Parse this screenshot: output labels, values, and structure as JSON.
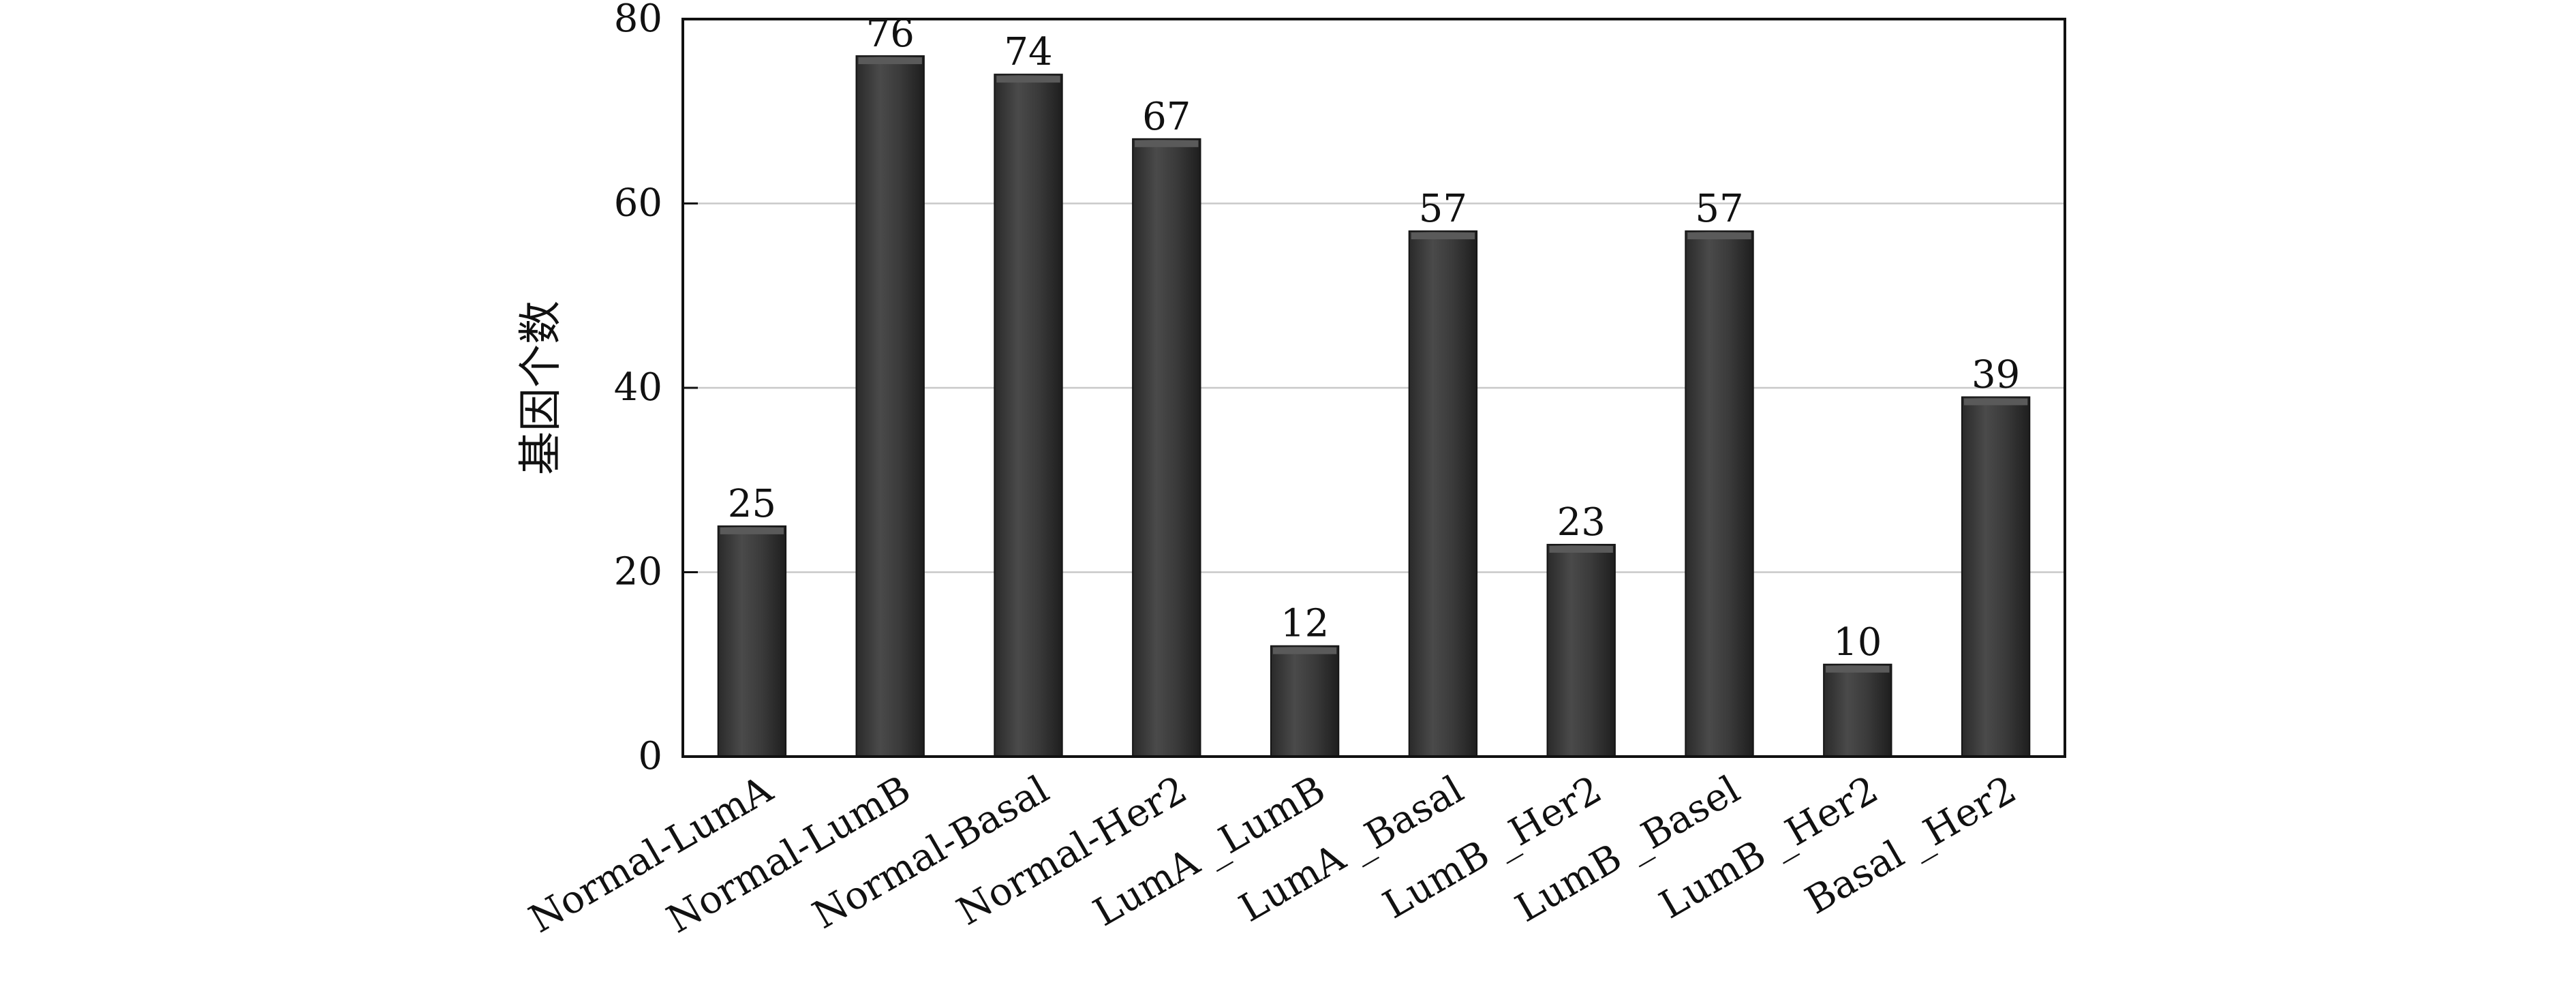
{
  "chart_data": {
    "type": "bar",
    "title": "",
    "xlabel": "",
    "ylabel": "基因个数",
    "ylim": [
      0,
      80
    ],
    "yticks": [
      0,
      20,
      40,
      60,
      80
    ],
    "grid": true,
    "categories": [
      "Normal-LumA",
      "Normal-LumB",
      "Normal-Basal",
      "Normal-Her2",
      "LumA _LumB",
      "LumA _Basal",
      "LumB _Her2",
      "LumB _Basel",
      "LumB _Her2",
      "Basal _Her2"
    ],
    "values": [
      25,
      76,
      74,
      67,
      12,
      57,
      23,
      57,
      10,
      39
    ],
    "colors": {
      "bar": "#3a3a3a",
      "bar_highlight": "#5a5a5a",
      "grid": "#c8c8c8",
      "axis": "#111111"
    }
  }
}
